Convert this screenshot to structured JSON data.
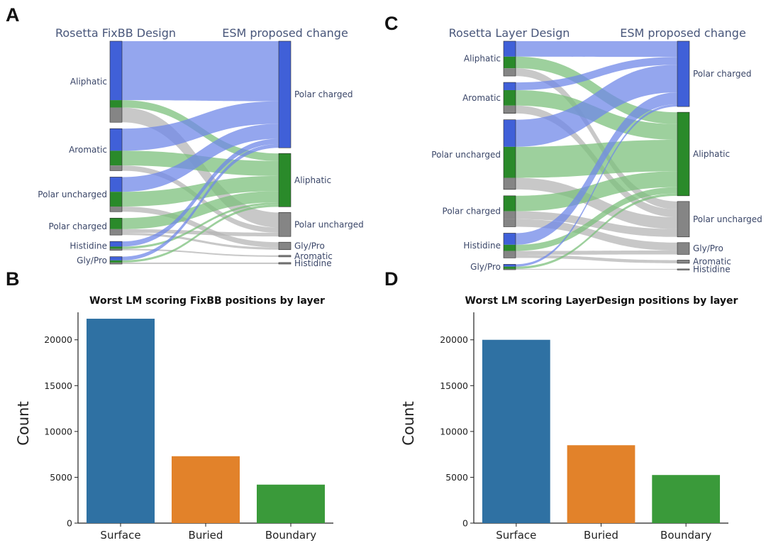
{
  "panels": {
    "a": "A",
    "b": "B",
    "c": "C",
    "d": "D"
  },
  "colors": {
    "polar_charged": "#4060d8",
    "aliphatic": "#2a8a2a",
    "gray": "#858585",
    "link_blue": "#7088e8",
    "link_green": "#7cc07c",
    "link_gray": "#b5b5b5"
  },
  "chart_data": [
    {
      "type": "sankey",
      "panel": "A",
      "source_title": "Rosetta FixBB Design",
      "target_title": "ESM proposed change",
      "sources": [
        "Aliphatic",
        "Aromatic",
        "Polar uncharged",
        "Polar charged",
        "Histidine",
        "Gly/Pro"
      ],
      "targets": [
        "Polar charged",
        "Aliphatic",
        "Polar uncharged",
        "Gly/Pro",
        "Aromatic",
        "Histidine"
      ],
      "flows": [
        {
          "source": "Aliphatic",
          "target": "Polar charged",
          "value": 8
        },
        {
          "source": "Aliphatic",
          "target": "Polar uncharged",
          "value": 2
        },
        {
          "source": "Aliphatic",
          "target": "Aliphatic",
          "value": 1
        },
        {
          "source": "Aromatic",
          "target": "Polar charged",
          "value": 3
        },
        {
          "source": "Aromatic",
          "target": "Aliphatic",
          "value": 2
        },
        {
          "source": "Aromatic",
          "target": "Polar uncharged",
          "value": 0.7
        },
        {
          "source": "Polar uncharged",
          "target": "Aliphatic",
          "value": 2
        },
        {
          "source": "Polar uncharged",
          "target": "Polar charged",
          "value": 2
        },
        {
          "source": "Polar uncharged",
          "target": "Gly/Pro",
          "value": 0.7
        },
        {
          "source": "Polar charged",
          "target": "Aliphatic",
          "value": 1.5
        },
        {
          "source": "Polar charged",
          "target": "Polar uncharged",
          "value": 0.5
        },
        {
          "source": "Polar charged",
          "target": "Gly/Pro",
          "value": 0.3
        },
        {
          "source": "Histidine",
          "target": "Polar charged",
          "value": 0.7
        },
        {
          "source": "Histidine",
          "target": "Aliphatic",
          "value": 0.3
        },
        {
          "source": "Histidine",
          "target": "Aromatic",
          "value": 0.2
        },
        {
          "source": "Gly/Pro",
          "target": "Polar charged",
          "value": 0.5
        },
        {
          "source": "Gly/Pro",
          "target": "Aliphatic",
          "value": 0.3
        },
        {
          "source": "Gly/Pro",
          "target": "Histidine",
          "value": 0.2
        }
      ]
    },
    {
      "type": "sankey",
      "panel": "C",
      "source_title": "Rosetta Layer Design",
      "target_title": "ESM proposed change",
      "sources": [
        "Aliphatic",
        "Aromatic",
        "Polar uncharged",
        "Polar charged",
        "Histidine",
        "Gly/Pro"
      ],
      "targets": [
        "Polar charged",
        "Aliphatic",
        "Polar uncharged",
        "Gly/Pro",
        "Aromatic",
        "Histidine"
      ],
      "flows": [
        {
          "source": "Aliphatic",
          "target": "Polar charged",
          "value": 2
        },
        {
          "source": "Aliphatic",
          "target": "Aliphatic",
          "value": 1.5
        },
        {
          "source": "Aliphatic",
          "target": "Polar uncharged",
          "value": 1
        },
        {
          "source": "Aromatic",
          "target": "Aliphatic",
          "value": 2
        },
        {
          "source": "Aromatic",
          "target": "Polar uncharged",
          "value": 1
        },
        {
          "source": "Aromatic",
          "target": "Polar charged",
          "value": 1
        },
        {
          "source": "Polar uncharged",
          "target": "Aliphatic",
          "value": 4
        },
        {
          "source": "Polar uncharged",
          "target": "Polar uncharged",
          "value": 1.5
        },
        {
          "source": "Polar uncharged",
          "target": "Polar charged",
          "value": 3.5
        },
        {
          "source": "Polar charged",
          "target": "Aliphatic",
          "value": 2
        },
        {
          "source": "Polar charged",
          "target": "Polar uncharged",
          "value": 1
        },
        {
          "source": "Polar charged",
          "target": "Gly/Pro",
          "value": 1
        },
        {
          "source": "Histidine",
          "target": "Polar charged",
          "value": 1.5
        },
        {
          "source": "Histidine",
          "target": "Aliphatic",
          "value": 0.8
        },
        {
          "source": "Histidine",
          "target": "Gly/Pro",
          "value": 0.5
        },
        {
          "source": "Histidine",
          "target": "Aromatic",
          "value": 0.4
        },
        {
          "source": "Gly/Pro",
          "target": "Aliphatic",
          "value": 0.3
        },
        {
          "source": "Gly/Pro",
          "target": "Polar charged",
          "value": 0.3
        },
        {
          "source": "Gly/Pro",
          "target": "Histidine",
          "value": 0.1
        }
      ]
    },
    {
      "type": "bar",
      "panel": "B",
      "title": "Worst LM scoring FixBB positions by layer",
      "categories": [
        "Surface",
        "Buried",
        "Boundary"
      ],
      "values": [
        22300,
        7300,
        4200
      ],
      "colors": [
        "#2f71a3",
        "#e2822a",
        "#3a9a3a"
      ],
      "xlabel": "",
      "ylabel": "Count",
      "ylim": [
        0,
        23000
      ],
      "yticks": [
        0,
        5000,
        10000,
        15000,
        20000
      ]
    },
    {
      "type": "bar",
      "panel": "D",
      "title": "Worst LM scoring LayerDesign positions by layer",
      "categories": [
        "Surface",
        "Buried",
        "Boundary"
      ],
      "values": [
        20000,
        8500,
        5250
      ],
      "colors": [
        "#2f71a3",
        "#e2822a",
        "#3a9a3a"
      ],
      "xlabel": "",
      "ylabel": "Count",
      "ylim": [
        0,
        23000
      ],
      "yticks": [
        0,
        5000,
        10000,
        15000,
        20000
      ]
    }
  ]
}
